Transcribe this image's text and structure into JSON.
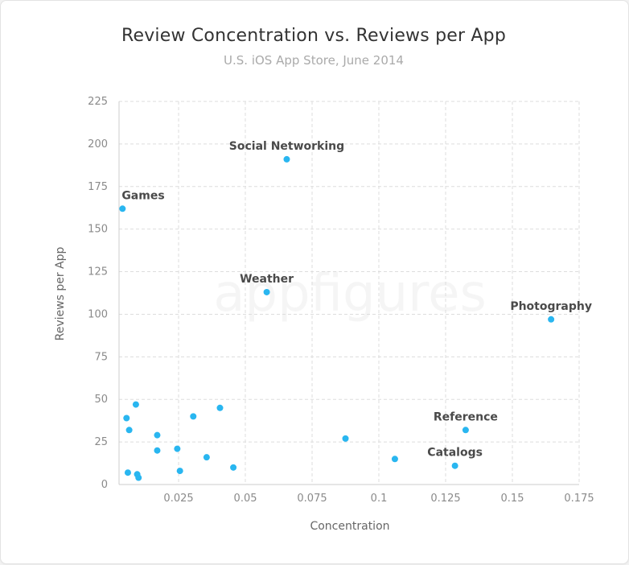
{
  "watermark": "appfigures",
  "chart_data": {
    "type": "scatter",
    "title": "Review Concentration vs. Reviews per App",
    "subtitle": "U.S. iOS App Store, June 2014",
    "xlabel": "Concentration",
    "ylabel": "Reviews per App",
    "xlim": [
      0.0027,
      0.175
    ],
    "ylim": [
      0,
      225
    ],
    "x_ticks": [
      "0.025",
      "0.05",
      "0.075",
      "0.1",
      "0.125",
      "0.15",
      "0.175"
    ],
    "y_ticks": [
      "0",
      "25",
      "50",
      "75",
      "100",
      "125",
      "150",
      "175",
      "200",
      "225"
    ],
    "grid": true,
    "color": "#29b6f0",
    "points": [
      {
        "x": 0.004,
        "y": 162,
        "label": "Games"
      },
      {
        "x": 0.0655,
        "y": 191,
        "label": "Social Networking"
      },
      {
        "x": 0.058,
        "y": 113,
        "label": "Weather"
      },
      {
        "x": 0.1645,
        "y": 97,
        "label": "Photography"
      },
      {
        "x": 0.1325,
        "y": 32,
        "label": "Reference"
      },
      {
        "x": 0.1285,
        "y": 11,
        "label": "Catalogs"
      },
      {
        "x": 0.0055,
        "y": 39,
        "label": ""
      },
      {
        "x": 0.0065,
        "y": 32,
        "label": ""
      },
      {
        "x": 0.009,
        "y": 47,
        "label": ""
      },
      {
        "x": 0.006,
        "y": 7,
        "label": ""
      },
      {
        "x": 0.0095,
        "y": 6,
        "label": ""
      },
      {
        "x": 0.01,
        "y": 4,
        "label": ""
      },
      {
        "x": 0.017,
        "y": 29,
        "label": ""
      },
      {
        "x": 0.017,
        "y": 20,
        "label": ""
      },
      {
        "x": 0.0245,
        "y": 21,
        "label": ""
      },
      {
        "x": 0.0255,
        "y": 8,
        "label": ""
      },
      {
        "x": 0.0305,
        "y": 40,
        "label": ""
      },
      {
        "x": 0.0405,
        "y": 45,
        "label": ""
      },
      {
        "x": 0.0355,
        "y": 16,
        "label": ""
      },
      {
        "x": 0.0455,
        "y": 10,
        "label": ""
      },
      {
        "x": 0.0875,
        "y": 27,
        "label": ""
      },
      {
        "x": 0.106,
        "y": 15,
        "label": ""
      }
    ]
  }
}
